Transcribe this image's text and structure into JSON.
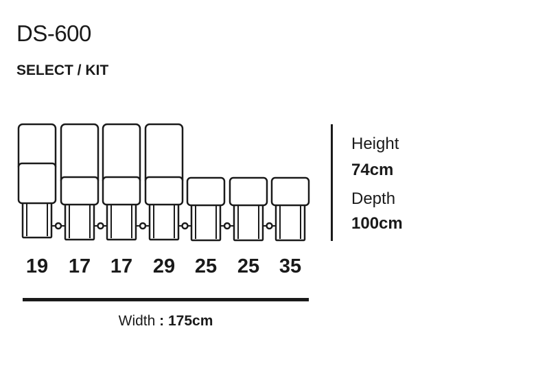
{
  "header": {
    "title": "DS-600",
    "subtitle": "SELECT / KIT"
  },
  "modules": [
    {
      "number": "19",
      "type": "tall-high-seat"
    },
    {
      "number": "17",
      "type": "tall"
    },
    {
      "number": "17",
      "type": "tall"
    },
    {
      "number": "29",
      "type": "tall"
    },
    {
      "number": "25",
      "type": "short"
    },
    {
      "number": "25",
      "type": "short"
    },
    {
      "number": "35",
      "type": "short"
    }
  ],
  "width": {
    "label": "Width",
    "separator": " : ",
    "value": "175cm"
  },
  "specs": {
    "height_label": "Height",
    "height_value": "74cm",
    "depth_label": "Depth",
    "depth_value": "100cm"
  },
  "colors": {
    "line": "#1a1a1a",
    "background": "#ffffff"
  }
}
